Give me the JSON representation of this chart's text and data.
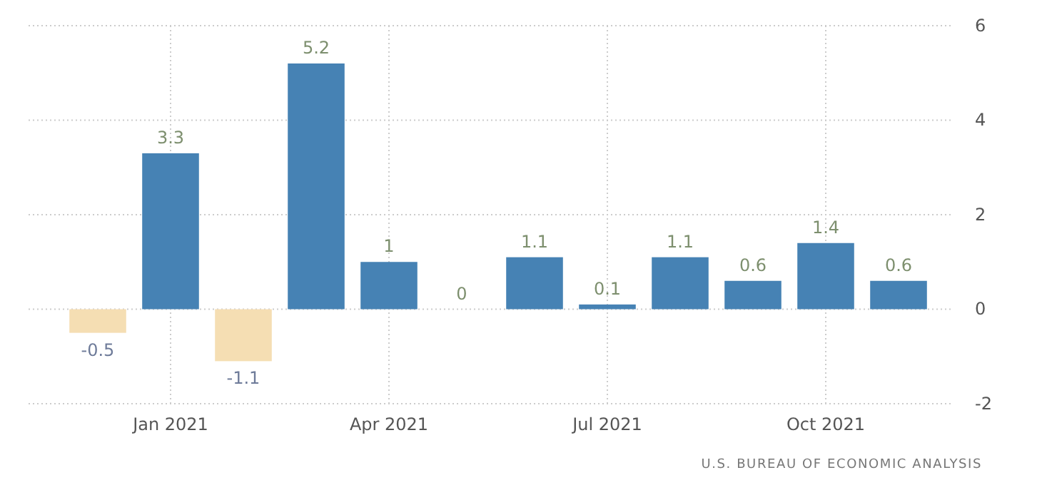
{
  "chart_data": {
    "type": "bar",
    "categories": [
      null,
      "Jan 2021",
      null,
      null,
      "Apr 2021",
      null,
      null,
      "Jul 2021",
      null,
      null,
      "Oct 2021",
      null
    ],
    "values": [
      -0.5,
      3.3,
      -1.1,
      5.2,
      1,
      0,
      1.1,
      0.1,
      1.1,
      0.6,
      1.4,
      0.6
    ],
    "colors": [
      "#f5deb3",
      "#4682b4",
      "#f5deb3",
      "#4682b4",
      "#4682b4",
      "#4682b4",
      "#4682b4",
      "#4682b4",
      "#4682b4",
      "#4682b4",
      "#4682b4",
      "#4682b4"
    ],
    "ylim": [
      -2,
      6
    ],
    "yticks": [
      -2,
      0,
      2,
      4,
      6
    ],
    "grid": true,
    "data_labels": true,
    "annotations": [
      "U.S. BUREAU OF ECONOMIC ANALYSIS"
    ]
  }
}
